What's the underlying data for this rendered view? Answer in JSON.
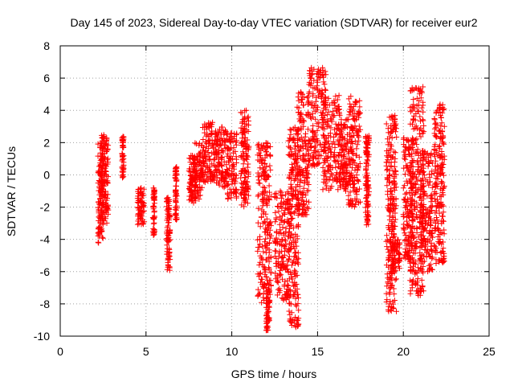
{
  "chart_data": {
    "type": "scatter",
    "title": "Day 145 of 2023, Sidereal Day-to-day VTEC variation (SDTVAR) for receiver eur2",
    "xlabel": "GPS time / hours",
    "ylabel": "SDTVAR / TECUs",
    "xlim": [
      0,
      25
    ],
    "ylim": [
      -10,
      8
    ],
    "xticks": [
      0,
      5,
      10,
      15,
      20,
      25
    ],
    "yticks": [
      -10,
      -8,
      -6,
      -4,
      -2,
      0,
      2,
      4,
      6,
      8
    ],
    "grid": true,
    "legend": "none",
    "marker": "plus",
    "colors": {
      "points": "#ff0000",
      "axes": "#000000",
      "grid": "#a0a0a0",
      "background": "#ffffff"
    },
    "clusters": [
      {
        "x": [
          2.2,
          2.5
        ],
        "y": [
          -4.4,
          2.0
        ]
      },
      {
        "x": [
          2.4,
          2.8
        ],
        "y": [
          -3.0,
          2.6
        ]
      },
      {
        "x": [
          3.6,
          3.7
        ],
        "y": [
          -0.3,
          2.4
        ]
      },
      {
        "x": [
          4.5,
          4.9
        ],
        "y": [
          -3.2,
          -0.8
        ]
      },
      {
        "x": [
          5.4,
          5.5
        ],
        "y": [
          -3.8,
          -0.8
        ]
      },
      {
        "x": [
          6.2,
          6.4
        ],
        "y": [
          -6.0,
          -1.4
        ]
      },
      {
        "x": [
          6.7,
          6.8
        ],
        "y": [
          -2.8,
          0.5
        ]
      },
      {
        "x": [
          7.5,
          7.9
        ],
        "y": [
          -1.8,
          1.2
        ]
      },
      {
        "x": [
          7.8,
          8.3
        ],
        "y": [
          -1.5,
          2.0
        ]
      },
      {
        "x": [
          8.3,
          9.0
        ],
        "y": [
          -0.5,
          3.3
        ]
      },
      {
        "x": [
          9.0,
          9.6
        ],
        "y": [
          -0.8,
          3.0
        ]
      },
      {
        "x": [
          9.6,
          10.3
        ],
        "y": [
          -1.5,
          2.8
        ]
      },
      {
        "x": [
          10.5,
          11.0
        ],
        "y": [
          -2.0,
          4.0
        ]
      },
      {
        "x": [
          11.5,
          12.3
        ],
        "y": [
          -8.0,
          2.0
        ]
      },
      {
        "x": [
          12.0,
          12.2
        ],
        "y": [
          -9.7,
          -7.0
        ]
      },
      {
        "x": [
          12.5,
          13.3
        ],
        "y": [
          -7.8,
          -1.0
        ]
      },
      {
        "x": [
          13.3,
          13.9
        ],
        "y": [
          -9.5,
          3.0
        ]
      },
      {
        "x": [
          13.8,
          14.5
        ],
        "y": [
          -2.5,
          5.2
        ]
      },
      {
        "x": [
          14.5,
          15.5
        ],
        "y": [
          0.5,
          6.7
        ]
      },
      {
        "x": [
          15.3,
          16.3
        ],
        "y": [
          -1.0,
          5.0
        ]
      },
      {
        "x": [
          16.3,
          16.8
        ],
        "y": [
          -1.0,
          3.5
        ]
      },
      {
        "x": [
          16.8,
          17.5
        ],
        "y": [
          -2.0,
          4.9
        ]
      },
      {
        "x": [
          17.8,
          18.0
        ],
        "y": [
          -3.2,
          2.5
        ]
      },
      {
        "x": [
          19.0,
          19.6
        ],
        "y": [
          -8.5,
          3.7
        ]
      },
      {
        "x": [
          19.3,
          19.8
        ],
        "y": [
          -5.8,
          -4.0
        ]
      },
      {
        "x": [
          20.0,
          20.6
        ],
        "y": [
          -5.5,
          2.3
        ]
      },
      {
        "x": [
          20.4,
          21.2
        ],
        "y": [
          -7.5,
          5.5
        ]
      },
      {
        "x": [
          21.0,
          21.7
        ],
        "y": [
          -6.0,
          1.5
        ]
      },
      {
        "x": [
          21.8,
          22.4
        ],
        "y": [
          -5.5,
          4.4
        ]
      }
    ]
  }
}
